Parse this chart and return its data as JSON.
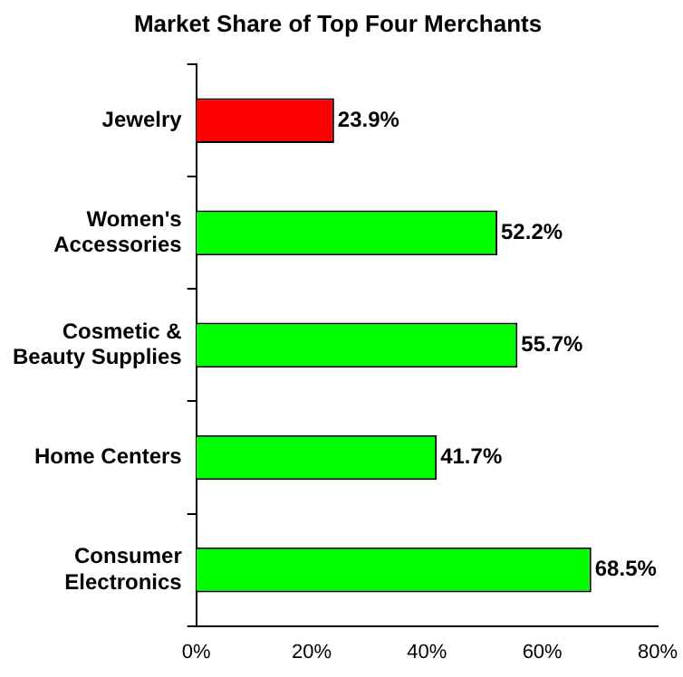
{
  "chart_data": {
    "type": "bar",
    "orientation": "horizontal",
    "title": "Market Share of Top Four Merchants",
    "categories": [
      "Jewelry",
      "Women's Accessories",
      "Cosmetic & Beauty Supplies",
      "Home Centers",
      "Consumer Electronics"
    ],
    "values": [
      23.9,
      52.2,
      55.7,
      41.7,
      68.5
    ],
    "colors": [
      "#ff0000",
      "#00ff00",
      "#00ff00",
      "#00ff00",
      "#00ff00"
    ],
    "value_labels": [
      "23.9%",
      "52.2%",
      "55.7%",
      "41.7%",
      "68.5%"
    ],
    "xlim": [
      0,
      80
    ],
    "xticks": [
      {
        "value": 0,
        "label": "0%"
      },
      {
        "value": 20,
        "label": "20%"
      },
      {
        "value": 40,
        "label": "40%"
      },
      {
        "value": 60,
        "label": "60%"
      },
      {
        "value": 80,
        "label": "80%"
      }
    ],
    "grid": false,
    "legend": false
  }
}
